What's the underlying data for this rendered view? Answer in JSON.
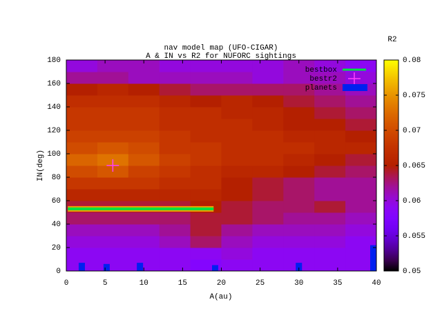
{
  "chart_data": {
    "type": "heatmap",
    "title": "nav model map (UFO-CIGAR)",
    "subtitle": "A & IN vs R2 for NUFORC sightings",
    "xlabel": "A(au)",
    "ylabel": "IN(deg)",
    "colorbar_label": "R2",
    "xlim": [
      0,
      40
    ],
    "xticks": [
      0,
      5,
      10,
      15,
      20,
      25,
      30,
      35,
      40
    ],
    "ylim": [
      0,
      180
    ],
    "yticks": [
      0,
      20,
      40,
      60,
      80,
      100,
      120,
      140,
      160,
      180
    ],
    "cblim": [
      0.05,
      0.08
    ],
    "cbticks": [
      0.05,
      0.055,
      0.06,
      0.065,
      0.07,
      0.075,
      0.08
    ],
    "x_edges": [
      0,
      4,
      8,
      12,
      16,
      20,
      24,
      28,
      32,
      36,
      40
    ],
    "y_edges": [
      0,
      10,
      20,
      30,
      40,
      50,
      60,
      70,
      80,
      90,
      100,
      110,
      120,
      130,
      140,
      150,
      160,
      170,
      180
    ],
    "z": [
      [
        0.059,
        0.059,
        0.059,
        0.059,
        0.058,
        0.059,
        0.059,
        0.059,
        0.059,
        0.059
      ],
      [
        0.059,
        0.059,
        0.059,
        0.059,
        0.059,
        0.06,
        0.059,
        0.059,
        0.059,
        0.059
      ],
      [
        0.06,
        0.06,
        0.06,
        0.061,
        0.063,
        0.061,
        0.06,
        0.06,
        0.06,
        0.059
      ],
      [
        0.061,
        0.061,
        0.061,
        0.062,
        0.064,
        0.062,
        0.061,
        0.061,
        0.061,
        0.06
      ],
      [
        0.063,
        0.063,
        0.063,
        0.063,
        0.064,
        0.064,
        0.063,
        0.062,
        0.062,
        0.061
      ],
      [
        0.064,
        0.064,
        0.064,
        0.064,
        0.065,
        0.064,
        0.063,
        0.063,
        0.064,
        0.062
      ],
      [
        0.066,
        0.066,
        0.066,
        0.066,
        0.066,
        0.065,
        0.064,
        0.063,
        0.062,
        0.062
      ],
      [
        0.068,
        0.068,
        0.068,
        0.067,
        0.067,
        0.065,
        0.064,
        0.063,
        0.062,
        0.062
      ],
      [
        0.07,
        0.071,
        0.069,
        0.068,
        0.067,
        0.066,
        0.066,
        0.065,
        0.064,
        0.063
      ],
      [
        0.072,
        0.073,
        0.071,
        0.069,
        0.068,
        0.067,
        0.067,
        0.066,
        0.065,
        0.064
      ],
      [
        0.07,
        0.071,
        0.07,
        0.068,
        0.068,
        0.067,
        0.067,
        0.067,
        0.066,
        0.066
      ],
      [
        0.069,
        0.069,
        0.069,
        0.068,
        0.067,
        0.067,
        0.067,
        0.066,
        0.066,
        0.065
      ],
      [
        0.068,
        0.068,
        0.068,
        0.067,
        0.067,
        0.067,
        0.066,
        0.065,
        0.065,
        0.064
      ],
      [
        0.068,
        0.068,
        0.068,
        0.067,
        0.067,
        0.066,
        0.066,
        0.065,
        0.064,
        0.063
      ],
      [
        0.067,
        0.067,
        0.067,
        0.066,
        0.065,
        0.066,
        0.065,
        0.064,
        0.063,
        0.062
      ],
      [
        0.065,
        0.066,
        0.065,
        0.064,
        0.063,
        0.063,
        0.063,
        0.063,
        0.062,
        0.061
      ],
      [
        0.062,
        0.062,
        0.061,
        0.061,
        0.061,
        0.061,
        0.06,
        0.061,
        0.061,
        0.06
      ],
      [
        0.06,
        0.061,
        0.061,
        0.06,
        0.06,
        0.06,
        0.06,
        0.061,
        0.06,
        0.059
      ]
    ],
    "series": [
      {
        "name": "bestbox",
        "color": "#00e040",
        "x": [
          0.2,
          19
        ],
        "values": [
          53,
          53
        ]
      },
      {
        "name": "bestr2",
        "color": "#ff40ff",
        "x": [
          6
        ],
        "values": [
          90
        ]
      },
      {
        "name": "planets",
        "color": "#0020f0",
        "x": [
          2,
          5.2,
          9.5,
          19.2,
          30,
          39.6
        ],
        "values": [
          7,
          6,
          7,
          5,
          7,
          22
        ]
      }
    ]
  }
}
